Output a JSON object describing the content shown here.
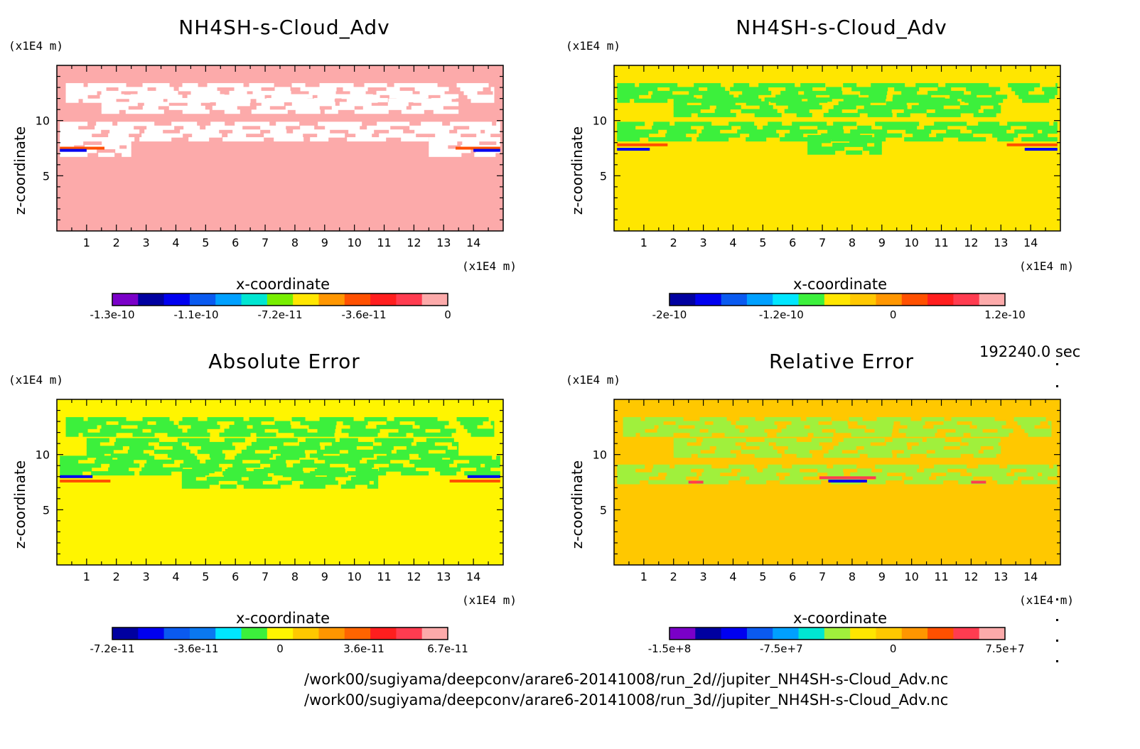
{
  "time_label": "192240.0 sec",
  "files": [
    "/work00/sugiyama/deepconv/arare6-20141008/run_2d//jupiter_NH4SH-s-Cloud_Adv.nc",
    "/work00/sugiyama/deepconv/arare6-20141008/run_3d//jupiter_NH4SH-s-Cloud_Adv.nc"
  ],
  "chart_data": [
    {
      "type": "heatmap",
      "title": "NH4SH-s-Cloud_Adv",
      "xlabel": "x-coordinate",
      "ylabel": "z-coordinate",
      "x_unit": "(x1E4 m)",
      "z_unit": "(x1E4 m)",
      "xlim": [
        0,
        15
      ],
      "zlim": [
        0,
        15
      ],
      "x_ticks": [
        1,
        2,
        3,
        4,
        5,
        6,
        7,
        8,
        9,
        10,
        11,
        12,
        13,
        14
      ],
      "z_ticks": [
        5,
        10
      ],
      "background": "#fcaaaa",
      "colorbar_colors": [
        "#7a00c8",
        "#0000a0",
        "#0000f0",
        "#0a5af0",
        "#00a0ff",
        "#00e6d2",
        "#78ee00",
        "#ffe600",
        "#ff9600",
        "#ff5000",
        "#ff1e1e",
        "#ff3c50",
        "#fcaaaa"
      ],
      "colorbar_labels": [
        "-1.3e-10",
        "-1.1e-10",
        "-7.2e-11",
        "-3.6e-11",
        "0"
      ],
      "features": [
        {
          "kind": "patch",
          "color": "#ffffff",
          "z": 12.5,
          "x0": 0.3,
          "x1": 14.7
        },
        {
          "kind": "patch",
          "color": "#ffffff",
          "z": 11.5,
          "x0": 1.5,
          "x1": 13.5
        },
        {
          "kind": "patch",
          "color": "#ffffff",
          "z": 9.0,
          "x0": 0.1,
          "x1": 14.9
        },
        {
          "kind": "patch",
          "color": "#ffffff",
          "z": 7.6,
          "x0": 0.1,
          "x1": 2.5
        },
        {
          "kind": "patch",
          "color": "#ffffff",
          "z": 7.6,
          "x0": 12.5,
          "x1": 14.9
        },
        {
          "kind": "band",
          "color": "#ff5000",
          "z": 7.5,
          "x0": 0.1,
          "x1": 1.6
        },
        {
          "kind": "band",
          "color": "#0000f0",
          "z": 7.3,
          "x0": 0.1,
          "x1": 1.0
        },
        {
          "kind": "band",
          "color": "#ff5000",
          "z": 7.5,
          "x0": 13.4,
          "x1": 14.9
        },
        {
          "kind": "band",
          "color": "#0000f0",
          "z": 7.3,
          "x0": 14.0,
          "x1": 14.9
        }
      ]
    },
    {
      "type": "heatmap",
      "title": "NH4SH-s-Cloud_Adv",
      "xlabel": "x-coordinate",
      "ylabel": "z-coordinate",
      "x_unit": "(x1E4 m)",
      "z_unit": "(x1E4 m)",
      "xlim": [
        0,
        15
      ],
      "zlim": [
        0,
        15
      ],
      "x_ticks": [
        1,
        2,
        3,
        4,
        5,
        6,
        7,
        8,
        9,
        10,
        11,
        12,
        13,
        14
      ],
      "z_ticks": [
        5,
        10
      ],
      "background": "#ffe600",
      "colorbar_colors": [
        "#0000a0",
        "#0000f0",
        "#0a5af0",
        "#00a0ff",
        "#00e6ff",
        "#3cf03c",
        "#ffe600",
        "#ffc800",
        "#ff9600",
        "#ff5000",
        "#ff1e1e",
        "#ff3c50",
        "#fcaaaa"
      ],
      "colorbar_labels": [
        "-2e-10",
        "-1.2e-10",
        "0",
        "1.2e-10"
      ],
      "features": [
        {
          "kind": "patch",
          "color": "#3cf03c",
          "z": 12.5,
          "x0": 0.1,
          "x1": 14.9
        },
        {
          "kind": "patch",
          "color": "#3cf03c",
          "z": 11.2,
          "x0": 2.0,
          "x1": 13.0
        },
        {
          "kind": "patch",
          "color": "#3cf03c",
          "z": 9.0,
          "x0": 0.1,
          "x1": 14.9
        },
        {
          "kind": "patch",
          "color": "#3cf03c",
          "z": 7.8,
          "x0": 6.5,
          "x1": 9.0
        },
        {
          "kind": "band",
          "color": "#ff5000",
          "z": 7.8,
          "x0": 0.1,
          "x1": 1.8
        },
        {
          "kind": "band",
          "color": "#0000f0",
          "z": 7.4,
          "x0": 0.1,
          "x1": 1.2
        },
        {
          "kind": "band",
          "color": "#ff5000",
          "z": 7.8,
          "x0": 13.2,
          "x1": 14.9
        },
        {
          "kind": "band",
          "color": "#0000f0",
          "z": 7.4,
          "x0": 13.8,
          "x1": 14.9
        }
      ]
    },
    {
      "type": "heatmap",
      "title": "Absolute Error",
      "xlabel": "x-coordinate",
      "ylabel": "z-coordinate",
      "x_unit": "(x1E4 m)",
      "z_unit": "(x1E4 m)",
      "xlim": [
        0,
        15
      ],
      "zlim": [
        0,
        15
      ],
      "x_ticks": [
        1,
        2,
        3,
        4,
        5,
        6,
        7,
        8,
        9,
        10,
        11,
        12,
        13,
        14
      ],
      "z_ticks": [
        5,
        10
      ],
      "background": "#fff500",
      "colorbar_colors": [
        "#0000a0",
        "#0000f0",
        "#0a5af0",
        "#0a78f0",
        "#00e6ff",
        "#3cf03c",
        "#fff500",
        "#ffc800",
        "#ff9600",
        "#ff6400",
        "#ff1e1e",
        "#ff3c50",
        "#fcaaaa"
      ],
      "colorbar_labels": [
        "-7.2e-11",
        "-3.6e-11",
        "0",
        "3.6e-11",
        "6.7e-11"
      ],
      "features": [
        {
          "kind": "patch",
          "color": "#3cf03c",
          "z": 12.5,
          "x0": 0.3,
          "x1": 14.7
        },
        {
          "kind": "patch",
          "color": "#3cf03c",
          "z": 10.6,
          "x0": 1.0,
          "x1": 13.5
        },
        {
          "kind": "patch",
          "color": "#3cf03c",
          "z": 9.0,
          "x0": 0.1,
          "x1": 14.9
        },
        {
          "kind": "patch",
          "color": "#3cf03c",
          "z": 7.8,
          "x0": 4.2,
          "x1": 10.8
        },
        {
          "kind": "band",
          "color": "#ff5000",
          "z": 7.6,
          "x0": 0.1,
          "x1": 1.8
        },
        {
          "kind": "band",
          "color": "#0000f0",
          "z": 8.0,
          "x0": 0.1,
          "x1": 1.2
        },
        {
          "kind": "band",
          "color": "#ff5000",
          "z": 7.6,
          "x0": 13.2,
          "x1": 14.9
        },
        {
          "kind": "band",
          "color": "#0000f0",
          "z": 8.0,
          "x0": 13.8,
          "x1": 14.9
        }
      ]
    },
    {
      "type": "heatmap",
      "title": "Relative Error",
      "xlabel": "x-coordinate",
      "ylabel": "z-coordinate",
      "x_unit": "(x1E4 m)",
      "z_unit": "(x1E4 m)",
      "xlim": [
        0,
        15
      ],
      "zlim": [
        0,
        15
      ],
      "x_ticks": [
        1,
        2,
        3,
        4,
        5,
        6,
        7,
        8,
        9,
        10,
        11,
        12,
        13,
        14
      ],
      "z_ticks": [
        5,
        10
      ],
      "background": "#ffc800",
      "colorbar_colors": [
        "#7a00c8",
        "#0000a0",
        "#0000f0",
        "#0a5af0",
        "#00a0ff",
        "#00e6d2",
        "#a0f03c",
        "#ffe600",
        "#ffc800",
        "#ff9600",
        "#ff5000",
        "#ff3c50",
        "#fcaaaa"
      ],
      "colorbar_labels": [
        "-1.5e+8",
        "-7.5e+7",
        "0",
        "7.5e+7"
      ],
      "features": [
        {
          "kind": "patch",
          "color": "#a0f03c",
          "z": 12.5,
          "x0": 0.3,
          "x1": 14.7
        },
        {
          "kind": "patch",
          "color": "#a0f03c",
          "z": 10.6,
          "x0": 2.0,
          "x1": 13.0
        },
        {
          "kind": "patch",
          "color": "#a0f03c",
          "z": 8.2,
          "x0": 0.1,
          "x1": 14.9
        },
        {
          "kind": "band",
          "color": "#ff3c50",
          "z": 7.9,
          "x0": 6.9,
          "x1": 8.8
        },
        {
          "kind": "band",
          "color": "#0000f0",
          "z": 7.6,
          "x0": 7.2,
          "x1": 8.5
        },
        {
          "kind": "band",
          "color": "#ff3c50",
          "z": 7.5,
          "x0": 2.5,
          "x1": 3.0
        },
        {
          "kind": "band",
          "color": "#ff3c50",
          "z": 7.5,
          "x0": 12.0,
          "x1": 12.5
        }
      ]
    }
  ]
}
